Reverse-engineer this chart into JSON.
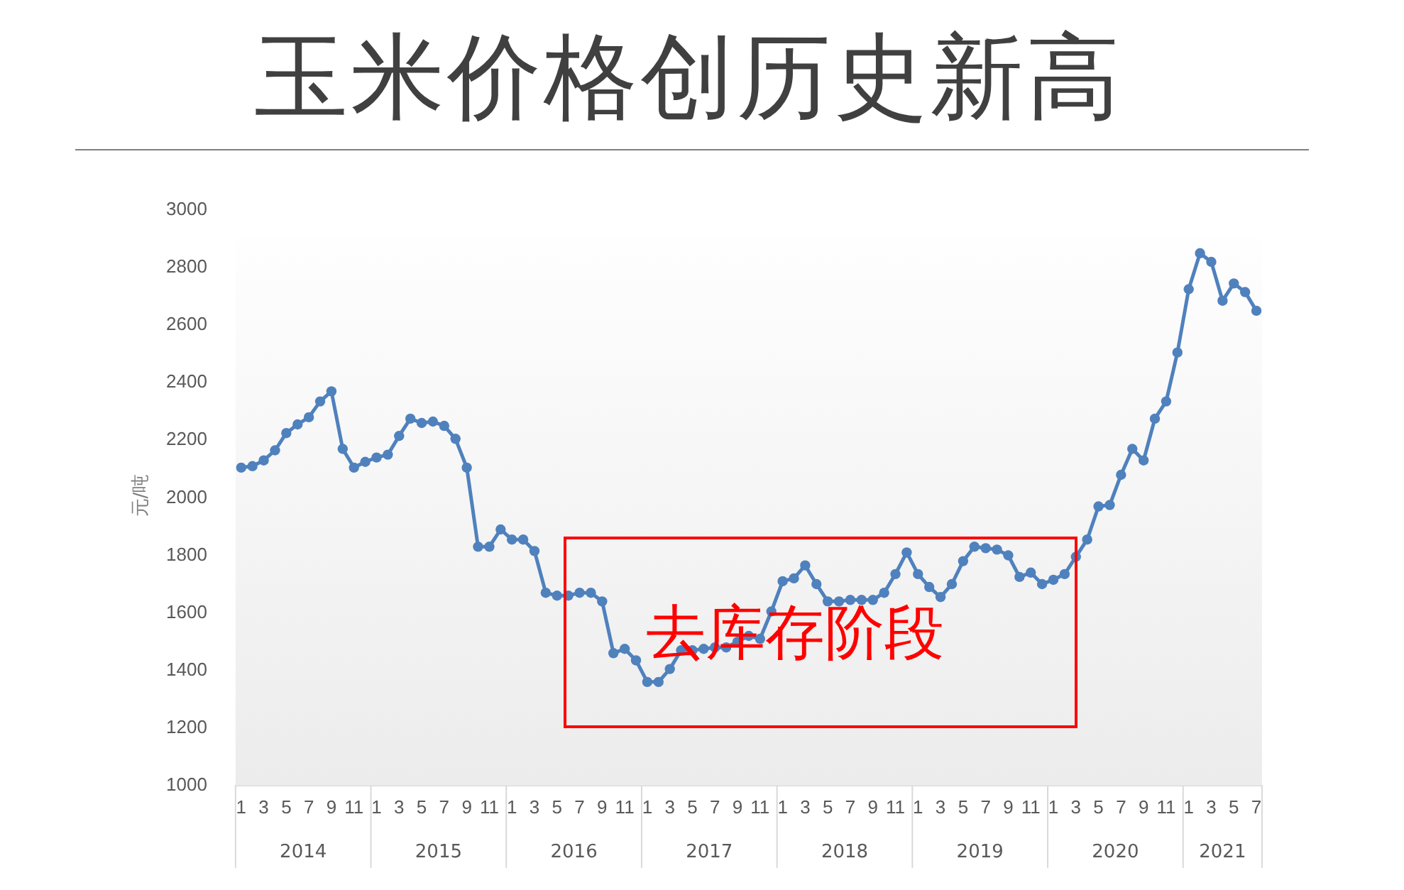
{
  "chart_data": {
    "type": "line",
    "title": "玉米价格创历史新高",
    "ylabel": "元/吨",
    "categories": [
      "1",
      null,
      "3",
      null,
      "5",
      null,
      "7",
      null,
      "9",
      null,
      "11",
      null,
      "1",
      null,
      "3",
      null,
      "5",
      null,
      "7",
      null,
      "9",
      null,
      "11",
      null,
      "1",
      null,
      "3",
      null,
      "5",
      null,
      "7",
      null,
      "9",
      null,
      "11",
      null,
      "1",
      null,
      "3",
      null,
      "5",
      null,
      "7",
      null,
      "9",
      null,
      "11",
      null,
      "1",
      null,
      "3",
      null,
      "5",
      null,
      "7",
      null,
      "9",
      null,
      "11",
      null,
      "1",
      null,
      "3",
      null,
      "5",
      null,
      "7",
      null,
      "9",
      null,
      "11",
      null,
      "1",
      null,
      "3",
      null,
      "5",
      null,
      "7",
      null,
      "9",
      null,
      "11",
      null,
      "1",
      null,
      "3",
      null,
      "5",
      null,
      "7"
    ],
    "series": [
      {
        "color": "#4f81bd",
        "values": [
          2105,
          2110,
          2130,
          2165,
          2225,
          2255,
          2280,
          2335,
          2370,
          2170,
          2105,
          2125,
          2140,
          2150,
          2215,
          2275,
          2260,
          2265,
          2250,
          2205,
          2105,
          1830,
          1830,
          1890,
          1855,
          1855,
          1815,
          1670,
          1660,
          1660,
          1670,
          1670,
          1640,
          1460,
          1475,
          1435,
          1360,
          1360,
          1405,
          1470,
          1470,
          1475,
          1480,
          1480,
          1500,
          1520,
          1510,
          1605,
          1710,
          1720,
          1765,
          1700,
          1640,
          1640,
          1645,
          1645,
          1645,
          1670,
          1735,
          1810,
          1735,
          1690,
          1655,
          1700,
          1780,
          1830,
          1825,
          1820,
          1800,
          1725,
          1740,
          1700,
          1715,
          1735,
          1795,
          1855,
          1970,
          1975,
          2080,
          2170,
          2130,
          2275,
          2335,
          2505,
          2725,
          2850,
          2820,
          2685,
          2745,
          2715,
          2650
        ]
      }
    ],
    "ylim": [
      1000,
      3000
    ],
    "yticks": [
      1000,
      1200,
      1400,
      1600,
      1800,
      2000,
      2200,
      2400,
      2600,
      2800,
      3000
    ],
    "grid": false,
    "legend": false,
    "marker": "circle",
    "line_style": "solid",
    "annotations": [
      "2014",
      "2015",
      "2016",
      "2017",
      "2018",
      "2019",
      "2020",
      "2021",
      "去库存阶段"
    ]
  }
}
